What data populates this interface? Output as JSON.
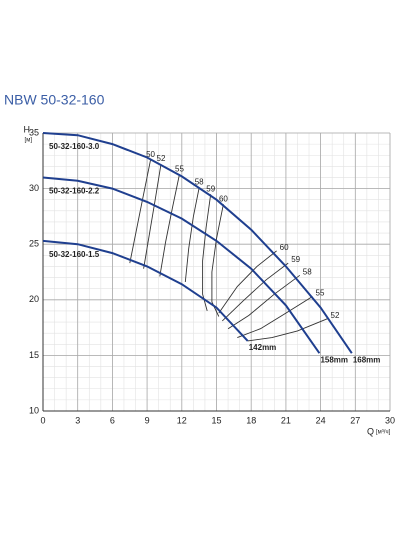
{
  "chart_data": {
    "type": "line",
    "title": "NBW 50-32-160",
    "y_label": "H",
    "y_unit": "[м]",
    "x_label": "Q",
    "x_unit": "[м³/ч]",
    "xlim": [
      0,
      30
    ],
    "ylim": [
      10,
      35
    ],
    "xticks": [
      0,
      3,
      6,
      9,
      12,
      15,
      18,
      21,
      24,
      27,
      30
    ],
    "yticks": [
      10,
      15,
      20,
      25,
      30,
      35
    ],
    "grid": true,
    "minor_xstep": 1,
    "minor_ystep": 1,
    "series": [
      {
        "name": "50-32-160-3.0",
        "end_label": "168mm",
        "color": "#1f3f8f",
        "x": [
          0,
          3,
          6,
          9,
          12,
          15,
          18,
          21,
          24,
          26.7
        ],
        "values": [
          35,
          34.8,
          34,
          32.8,
          31.1,
          29,
          26.3,
          23,
          19.3,
          15.2
        ]
      },
      {
        "name": "50-32-160-2.2",
        "end_label": "158mm",
        "color": "#1f3f8f",
        "x": [
          0,
          3,
          6,
          9,
          12,
          15,
          18,
          21,
          23.9
        ],
        "values": [
          31,
          30.7,
          30,
          28.8,
          27.3,
          25.3,
          22.8,
          19.5,
          15.2
        ]
      },
      {
        "name": "50-32-160-1.5",
        "end_label": "142mm",
        "color": "#1f3f8f",
        "x": [
          0,
          3,
          6,
          9,
          12,
          15,
          17.7
        ],
        "values": [
          25.3,
          25,
          24.2,
          23,
          21.4,
          19.3,
          16.3
        ]
      }
    ],
    "efficiency_lines": [
      {
        "name": "50",
        "color": "#333333",
        "x": [
          9.3,
          8.7,
          8.1,
          7.5
        ],
        "values": [
          32.6,
          29.5,
          26.4,
          23.3
        ]
      },
      {
        "name": "52",
        "color": "#333333",
        "x": [
          10.2,
          9.7,
          9.2,
          8.7
        ],
        "values": [
          32.2,
          29,
          25.9,
          22.8
        ]
      },
      {
        "name": "55",
        "color": "#333333",
        "x": [
          11.8,
          11.2,
          10.6,
          10.1
        ],
        "values": [
          31.3,
          28.3,
          25.2,
          22.1
        ]
      },
      {
        "name": "58",
        "color": "#333333",
        "x": [
          13.5,
          13,
          12.6,
          12.3
        ],
        "values": [
          30.1,
          27.5,
          24.6,
          21.6
        ]
      },
      {
        "name": "59",
        "color": "#333333",
        "x": [
          14.5,
          14.1,
          13.8,
          13.8,
          14.2
        ],
        "values": [
          29.5,
          26.5,
          23.5,
          20.5,
          19
        ]
      },
      {
        "name": "60",
        "color": "#333333",
        "x": [
          15.6,
          15,
          14.6,
          14.6,
          15.2
        ],
        "values": [
          28.6,
          25.5,
          22.5,
          19.8,
          18.5
        ]
      },
      {
        "name": "60",
        "color": "#333333",
        "x": [
          20.2,
          18.5,
          16.8,
          15.2
        ],
        "values": [
          24.4,
          23,
          21.2,
          18.8
        ]
      },
      {
        "name": "59",
        "color": "#333333",
        "x": [
          21.2,
          19.3,
          17.3,
          15.5
        ],
        "values": [
          23.3,
          21.8,
          19.9,
          18.1
        ]
      },
      {
        "name": "58",
        "color": "#333333",
        "x": [
          22.2,
          20,
          17.8,
          16
        ],
        "values": [
          22.2,
          20.5,
          18.6,
          17.4
        ]
      },
      {
        "name": "55",
        "color": "#333333",
        "x": [
          23.3,
          21,
          18.8,
          16.8
        ],
        "values": [
          20.3,
          18.8,
          17.4,
          16.6
        ]
      },
      {
        "name": "52",
        "color": "#333333",
        "x": [
          24.6,
          22,
          19.8,
          17.7
        ],
        "values": [
          18.3,
          17.2,
          16.6,
          16.3
        ]
      }
    ]
  }
}
